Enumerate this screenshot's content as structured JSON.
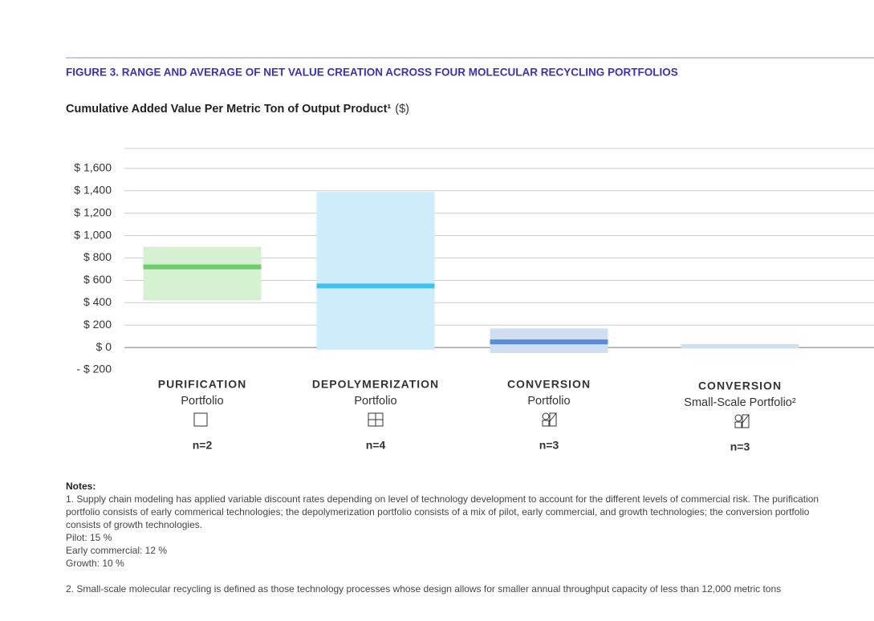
{
  "chart_data": {
    "type": "range-bar",
    "title": "FIGURE 3. RANGE AND AVERAGE OF NET VALUE CREATION ACROSS FOUR MOLECULAR RECYCLING PORTFOLIOS",
    "y_label": "Cumulative Added Value Per Metric Ton of Output Product¹",
    "y_unit": "($)",
    "categories": [
      "PURIFICATION",
      "DEPOLYMERIZATION",
      "CONVERSION",
      "CONVERSION"
    ],
    "subcategories": [
      "Portfolio",
      "Portfolio",
      "Portfolio",
      "Small-Scale Portfolio²"
    ],
    "n_labels": [
      "n=2",
      "n=4",
      "n=3",
      "n=3"
    ],
    "range_low": [
      420,
      -20,
      -50,
      -10
    ],
    "range_high": [
      900,
      1390,
      170,
      30
    ],
    "average": [
      720,
      550,
      50,
      null
    ],
    "colors": [
      "#d5f1d2",
      "#cdedfb",
      "#cfdff1",
      "#cfdff1"
    ],
    "average_colors": [
      "#6dcc6b",
      "#40c2f1",
      "#5b8dd4",
      "#5b8dd4"
    ],
    "ylim": [
      -200,
      1800
    ],
    "yticks": [
      {
        "value": -200,
        "label": "- $ 200"
      },
      {
        "value": 0,
        "label": "$ 0"
      },
      {
        "value": 200,
        "label": "$ 200"
      },
      {
        "value": 400,
        "label": "$ 400"
      },
      {
        "value": 600,
        "label": "$ 600"
      },
      {
        "value": 800,
        "label": "$ 800"
      },
      {
        "value": 1000,
        "label": "$ 1,000"
      },
      {
        "value": 1200,
        "label": "$ 1,200"
      },
      {
        "value": 1400,
        "label": "$ 1,400"
      },
      {
        "value": 1600,
        "label": "$ 1,600"
      }
    ],
    "grid": true
  },
  "notes": {
    "title": "Notes:",
    "lines": [
      "1. Supply chain modeling has applied variable discount rates depending on level of technology development to account for the different levels of commercial risk. The purification portfolio consists of early commerical technologies; the depolymerization portfolio consists of a mix of pilot, early commercial, and growth technologies; the conversion portfolio consists of growth technologies.",
      "Pilot: 15 %",
      "Early commercial: 12 %",
      "Growth: 10 %",
      "2. Small-scale molecular recycling is defined as those technology processes whose design allows for smaller annual throughput capacity of less than 12,000 metric tons"
    ]
  }
}
